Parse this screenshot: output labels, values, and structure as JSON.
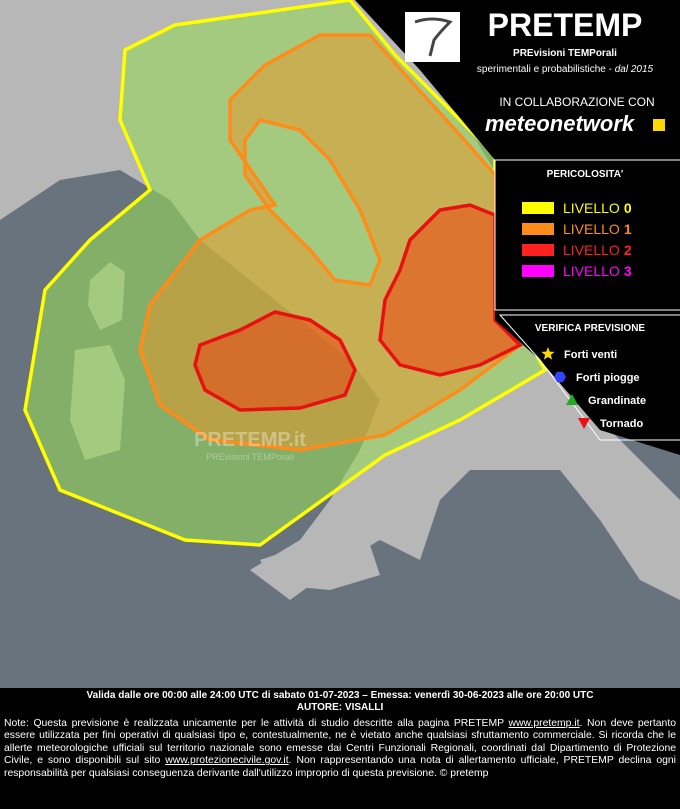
{
  "header": {
    "title": "PRETEMP",
    "subtitle": "PREvisioni TEMPorali",
    "tagline": "sperimentali e probabilistiche - ",
    "since": "dal 2015",
    "collaboration": "IN COLLABORAZIONE CON",
    "partner": "meteonetwork"
  },
  "legend": {
    "title": "PERICOLOSITA'",
    "levels": [
      {
        "label": "LIVELLO",
        "level": 0,
        "color": "#ffff00"
      },
      {
        "label": "LIVELLO",
        "level": 1,
        "color": "#ff8c1a"
      },
      {
        "label": "LIVELLO",
        "level": 2,
        "color": "#ff2020"
      },
      {
        "label": "LIVELLO",
        "level": 3,
        "color": "#ff00ff"
      }
    ]
  },
  "verification": {
    "title": "VERIFICA PREVISIONE",
    "items": [
      {
        "label": "Forti venti",
        "color": "#ffd700",
        "shape": "star"
      },
      {
        "label": "Forti piogge",
        "color": "#3344ff",
        "shape": "hexagon"
      },
      {
        "label": "Grandinate",
        "color": "#22aa22",
        "shape": "triangle-up"
      },
      {
        "label": "Tornado",
        "color": "#ee1111",
        "shape": "triangle-down"
      }
    ]
  },
  "watermark": {
    "title": "PRETEMP.it",
    "subtitle": "PREvisioni TEMPorali"
  },
  "footer": {
    "validity": "Valida dalle ore 00:00 alle 24:00 UTC di sabato 01-07-2023 – Emessa: venerdì 30-06-2023 alle ore 20:00 UTC",
    "author": "AUTORE: VISALLI",
    "note": [
      "Note: Questa previsione è realizzata unicamente per le attività di studio descritte alla pagina PRETEMP ",
      "www.pretemp.it",
      ". Non deve pertanto essere utilizzata per fini operativi di qualsiasi tipo e, contestualmente, ne è vietato anche qualsiasi sfruttamento commerciale. Si ricorda che le allerte meteorologiche ufficiali sul territorio nazionale sono emesse dai Centri Funzionali Regionali, coordinati dal Dipartimento di Protezione Civile, e sono disponibili sul sito ",
      "www.protezionecivile.gov.it",
      ". Non rappresentando una nota di allertamento ufficiale, PRETEMP declina ogni responsabilità per qualsiasi conseguenza derivante dall'utilizzo improprio di questa previsione.  © pretemp"
    ]
  }
}
